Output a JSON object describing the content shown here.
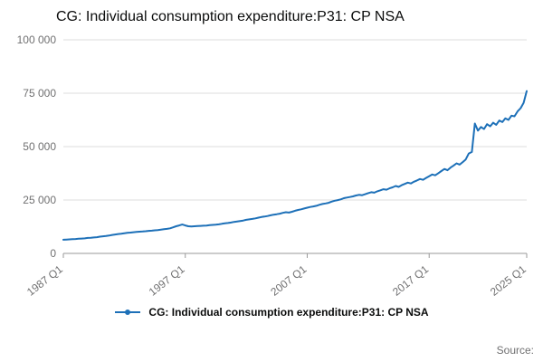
{
  "chart_data": {
    "type": "line",
    "title": "CG: Individual consumption expenditure:P31: CP NSA",
    "series": [
      {
        "name": "CG: Individual consumption expenditure:P31: CP NSA",
        "values": [
          6400,
          6500,
          6550,
          6650,
          6750,
          6850,
          6950,
          7050,
          7250,
          7350,
          7450,
          7600,
          7850,
          8000,
          8150,
          8350,
          8650,
          8850,
          9050,
          9250,
          9450,
          9650,
          9750,
          9900,
          10050,
          10150,
          10250,
          10400,
          10550,
          10650,
          10800,
          10900,
          11100,
          11300,
          11500,
          11750,
          12200,
          12700,
          13100,
          13500,
          13100,
          12700,
          12600,
          12700,
          12800,
          12900,
          12950,
          13050,
          13250,
          13350,
          13450,
          13600,
          13850,
          14050,
          14250,
          14450,
          14750,
          14950,
          15150,
          15400,
          15700,
          15950,
          16150,
          16400,
          16750,
          17050,
          17250,
          17500,
          17850,
          18150,
          18350,
          18600,
          19000,
          19300,
          19100,
          19500,
          19950,
          20350,
          20650,
          21000,
          21400,
          21750,
          22000,
          22300,
          22750,
          23150,
          23400,
          23700,
          24250,
          24650,
          24950,
          25300,
          25850,
          26150,
          26400,
          26700,
          27100,
          27400,
          27250,
          27700,
          28200,
          28650,
          28450,
          29050,
          29550,
          30050,
          29850,
          30450,
          30950,
          31550,
          31150,
          31950,
          32550,
          33150,
          32750,
          33550,
          34150,
          34850,
          34450,
          35350,
          36150,
          36950,
          36550,
          37550,
          38550,
          39550,
          38950,
          40150,
          41150,
          42150,
          41550,
          42750,
          44000,
          46800,
          47500,
          60800,
          57500,
          59200,
          58200,
          60500,
          59500,
          61200,
          60200,
          62200,
          61500,
          63200,
          62500,
          64500,
          64200,
          66500,
          68000,
          70500,
          76000
        ]
      }
    ],
    "x_start": "1987 Q1",
    "x_end": "2025 Q1",
    "frequency": "quarterly",
    "ylim": [
      0,
      100000
    ],
    "y_ticks": [
      {
        "value": 0,
        "label": "0"
      },
      {
        "value": 25000,
        "label": "25 000"
      },
      {
        "value": 50000,
        "label": "50 000"
      },
      {
        "value": 75000,
        "label": "75 000"
      },
      {
        "value": 100000,
        "label": "100 000"
      }
    ],
    "x_ticks": [
      {
        "index": 0,
        "label": "1987 Q1"
      },
      {
        "index": 40,
        "label": "1997 Q1"
      },
      {
        "index": 80,
        "label": "2007 Q1"
      },
      {
        "index": 120,
        "label": "2017 Q1"
      },
      {
        "index": 152,
        "label": "2025 Q1"
      }
    ],
    "line_color": "#1d70b8",
    "grid_color": "#dedede",
    "axis_color": "#999999",
    "tick_label_color": "#707071",
    "legend_position": "bottom"
  },
  "legend": {
    "label": "CG: Individual consumption expenditure:P31: CP NSA"
  },
  "source": {
    "label": "Source:"
  }
}
